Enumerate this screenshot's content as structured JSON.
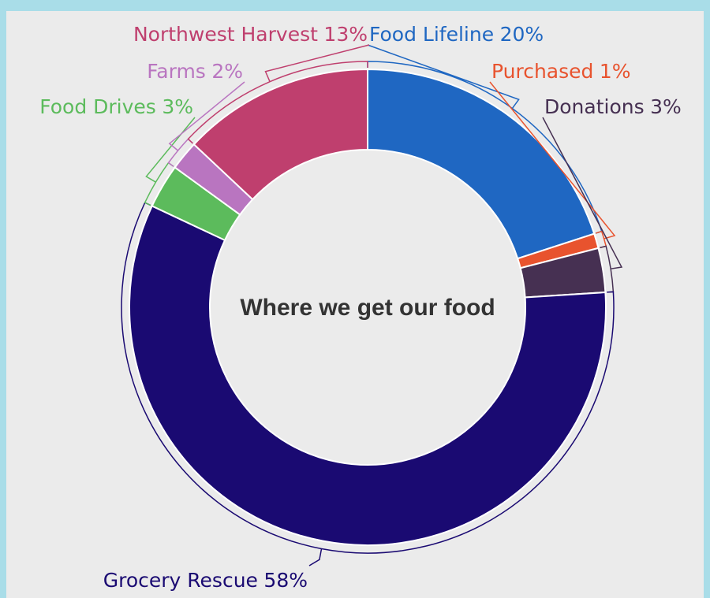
{
  "chart_data": {
    "type": "donut",
    "title": "Where we get our food",
    "categories": [
      "Food Lifeline",
      "Purchased",
      "Donations",
      "Grocery Rescue",
      "Food Drives",
      "Farms",
      "Northwest Harvest"
    ],
    "values": [
      20,
      1,
      3,
      58,
      3,
      2,
      13
    ],
    "value_labels": [
      "20%",
      "1%",
      "3%",
      "58%",
      "3%",
      "2%",
      "13%"
    ],
    "colors": [
      "#1f67c2",
      "#e8532e",
      "#463052",
      "#1a0a72",
      "#5cbb5c",
      "#b975c0",
      "#bf3f6e"
    ]
  }
}
